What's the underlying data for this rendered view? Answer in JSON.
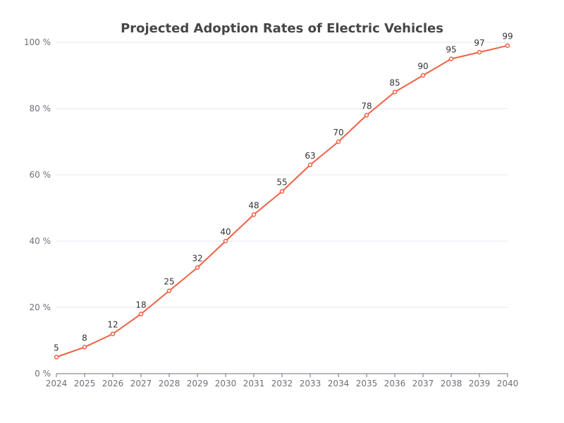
{
  "chart_data": {
    "type": "line",
    "title": "Projected Adoption Rates of Electric Vehicles",
    "xlabel": "",
    "ylabel": "",
    "categories": [
      "2024",
      "2025",
      "2026",
      "2027",
      "2028",
      "2029",
      "2030",
      "2031",
      "2032",
      "2033",
      "2034",
      "2035",
      "2036",
      "2037",
      "2038",
      "2039",
      "2040"
    ],
    "series": [
      {
        "values": [
          5,
          8,
          12,
          18,
          25,
          32,
          40,
          48,
          55,
          63,
          70,
          78,
          85,
          90,
          95,
          97,
          99
        ]
      }
    ],
    "ylim": [
      0,
      100
    ],
    "y_ticks": [
      0,
      20,
      40,
      60,
      80,
      100
    ],
    "y_tick_suffix": " %",
    "grid": true,
    "data_labels": true,
    "line_color": "#ee6144",
    "grid_color": "#e0e6f1",
    "axis_color": "#6e7079"
  }
}
